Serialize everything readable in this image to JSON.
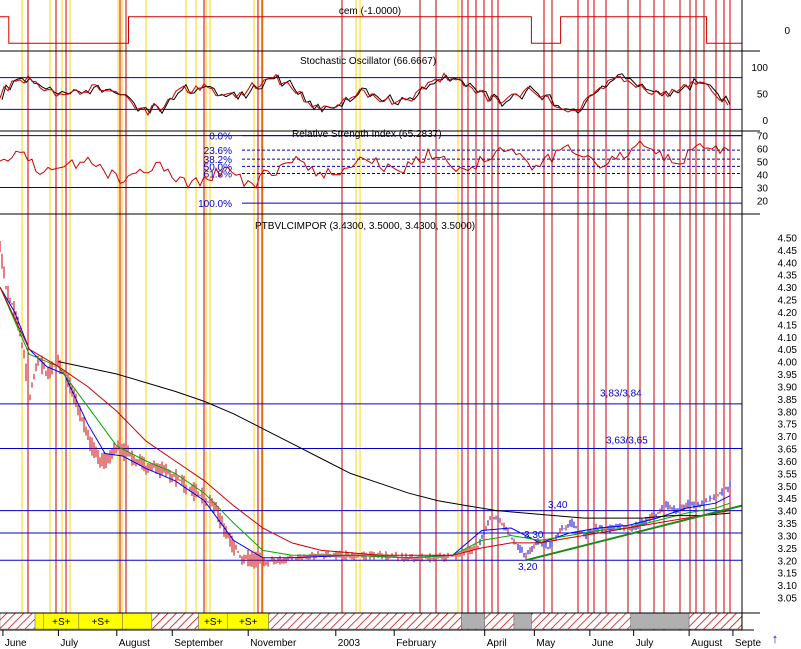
{
  "colors": {
    "background": "#ffffff",
    "frame": "#000000",
    "event_line_yellow": "#ffd700",
    "event_line_red": "#cc0000",
    "price": "#cc0000",
    "price_up": "#0000cc",
    "ma_short": "#0000ff",
    "ma_medium": "#00aa00",
    "ma_long": "#cc0000",
    "ma_200": "#000000",
    "reference_line": "#0000cc",
    "trendline": "#1a8a1a",
    "stripe_hatch": "#cc0000",
    "stripe_yellow": "#ffff00",
    "stripe_gray": "#b0b0b0"
  },
  "chart_data": [
    {
      "type": "line",
      "panel": "cem",
      "title": "cem (-1.0000)",
      "yticks": [
        "0"
      ],
      "ylim": [
        -1.2,
        1.2
      ],
      "series": [
        {
          "x": [
            0,
            0.3,
            0.3,
            4.4,
            4.4,
            18.2,
            18.2,
            19.2,
            19.2,
            24.2,
            24.2,
            25.4
          ],
          "values": [
            1,
            1,
            -1,
            -1,
            1,
            1,
            -1,
            -1,
            1,
            1,
            -1,
            -1
          ]
        }
      ]
    },
    {
      "type": "line",
      "panel": "stochastic",
      "title": "Stochastic Oscillator (66.6667)",
      "yticks": [
        "100",
        "50",
        "0"
      ],
      "ylim": [
        0,
        100
      ],
      "reference_levels": [
        80,
        20
      ]
    },
    {
      "type": "line",
      "panel": "rsi",
      "title": "Relative Strength Index (65.2837)",
      "yticks": [
        "70",
        "60",
        "50",
        "40",
        "30",
        "20"
      ],
      "ylim": [
        15,
        72
      ],
      "fib_labels": [
        "0.0%",
        "23.6%",
        "38.2%",
        "50.0%",
        "61.8%",
        "100.0%"
      ],
      "fib_levels": [
        70,
        58.8,
        51.9,
        46.3,
        40.8,
        18
      ],
      "reference_levels": [
        70,
        30
      ]
    },
    {
      "type": "line",
      "panel": "price",
      "title": "PTBVLCIMPOR (3.4300, 3.5000, 3.4300, 3.5000)",
      "yticks": [
        "4.50",
        "4.45",
        "4.40",
        "4.35",
        "4.30",
        "4.25",
        "4.20",
        "4.15",
        "4.10",
        "4.05",
        "4.00",
        "3.95",
        "3.90",
        "3.85",
        "3.80",
        "3.75",
        "3.70",
        "3.65",
        "3.60",
        "3.55",
        "3.50",
        "3.45",
        "3.40",
        "3.35",
        "3.30",
        "3.25",
        "3.20",
        "3.15",
        "3.10",
        "3.05"
      ],
      "ylim": [
        3.02,
        4.53
      ],
      "x_months": [
        "June",
        "July",
        "August",
        "September",
        "November",
        "2003",
        "February",
        "April",
        "May",
        "June",
        "July",
        "August",
        "Septe"
      ],
      "x_month_pos": [
        0.1,
        2.0,
        4.0,
        5.9,
        8.5,
        11.5,
        13.5,
        16.6,
        18.3,
        20.2,
        21.7,
        23.6,
        25.1
      ],
      "horizontal_levels": [
        3.83,
        3.65,
        3.4,
        3.31,
        3.2
      ],
      "annotations": [
        "3,83/3,84",
        "3,63/3,65",
        "3,40",
        "3,30",
        "3,20"
      ],
      "series": [
        {
          "name": "Close",
          "x": [
            0,
            0.2,
            0.5,
            0.8,
            1.0,
            1.3,
            1.6,
            2.0,
            2.3,
            2.6,
            3.0,
            3.3,
            3.6,
            4.0,
            4.3,
            4.7,
            5.0,
            5.4,
            5.8,
            6.2,
            6.6,
            7.0,
            7.4,
            7.8,
            8.2,
            8.6,
            9.0,
            9.5,
            10.0,
            11.0,
            12.0,
            13.0,
            14.0,
            15.0,
            15.8,
            16.4,
            16.8,
            17.2,
            17.6,
            18.0,
            18.4,
            18.8,
            19.2,
            19.6,
            20.0,
            20.4,
            20.8,
            21.2,
            21.6,
            22.0,
            22.4,
            22.8,
            23.2,
            23.6,
            24.0,
            24.4,
            24.8,
            25.0
          ],
          "values": [
            4.45,
            4.3,
            4.2,
            4.05,
            3.85,
            4.02,
            3.95,
            4.0,
            3.92,
            3.85,
            3.7,
            3.62,
            3.6,
            3.65,
            3.63,
            3.6,
            3.58,
            3.57,
            3.55,
            3.52,
            3.48,
            3.45,
            3.4,
            3.3,
            3.22,
            3.2,
            3.19,
            3.2,
            3.21,
            3.22,
            3.22,
            3.22,
            3.21,
            3.21,
            3.22,
            3.26,
            3.38,
            3.35,
            3.28,
            3.22,
            3.28,
            3.25,
            3.32,
            3.35,
            3.3,
            3.33,
            3.32,
            3.34,
            3.33,
            3.35,
            3.38,
            3.42,
            3.4,
            3.43,
            3.42,
            3.45,
            3.48,
            3.5
          ]
        },
        {
          "name": "MA short",
          "x": [
            0,
            0.5,
            1.0,
            1.6,
            2.2,
            3.0,
            3.6,
            4.2,
            5.0,
            6.0,
            7.0,
            8.0,
            9.0,
            10.0,
            12.0,
            14.0,
            15.5,
            16.5,
            17.5,
            18.5,
            19.5,
            20.5,
            21.5,
            22.5,
            23.5,
            24.5,
            25.0
          ],
          "values": [
            4.3,
            4.2,
            4.05,
            3.98,
            3.95,
            3.75,
            3.63,
            3.62,
            3.57,
            3.52,
            3.44,
            3.28,
            3.21,
            3.21,
            3.22,
            3.21,
            3.22,
            3.32,
            3.33,
            3.27,
            3.31,
            3.33,
            3.34,
            3.37,
            3.41,
            3.43,
            3.46
          ]
        },
        {
          "name": "MA medium",
          "x": [
            0,
            1.0,
            2.0,
            3.0,
            4.0,
            5.0,
            6.0,
            7.0,
            8.0,
            9.0,
            10.0,
            12.0,
            14.0,
            15.5,
            16.5,
            17.5,
            18.5,
            19.5,
            20.5,
            21.5,
            22.5,
            23.5,
            24.5,
            25.0
          ],
          "values": [
            4.3,
            4.03,
            3.98,
            3.82,
            3.66,
            3.6,
            3.55,
            3.47,
            3.35,
            3.24,
            3.22,
            3.22,
            3.21,
            3.22,
            3.28,
            3.3,
            3.28,
            3.3,
            3.32,
            3.33,
            3.36,
            3.39,
            3.41,
            3.43
          ]
        },
        {
          "name": "MA long",
          "x": [
            0,
            1.0,
            2.0,
            3.0,
            4.0,
            5.0,
            6.0,
            7.0,
            8.0,
            9.0,
            10.0,
            11.0,
            12.0,
            13.0,
            14.0,
            15.5,
            16.5,
            17.5,
            18.5,
            19.5,
            20.5,
            21.5,
            22.5,
            23.5,
            24.5,
            25.0
          ],
          "values": [
            4.3,
            4.05,
            3.98,
            3.9,
            3.8,
            3.68,
            3.6,
            3.52,
            3.42,
            3.33,
            3.27,
            3.24,
            3.23,
            3.22,
            3.22,
            3.22,
            3.25,
            3.27,
            3.27,
            3.29,
            3.31,
            3.33,
            3.35,
            3.37,
            3.39,
            3.4
          ]
        },
        {
          "name": "MA 200",
          "x": [
            2.0,
            4.0,
            6.0,
            7.0,
            8.0,
            9.0,
            10.0,
            11.0,
            12.0,
            13.0,
            14.0,
            15.0,
            16.0,
            17.0,
            18.0,
            19.0,
            20.0,
            21.0,
            22.0,
            23.0,
            24.0,
            25.0
          ],
          "values": [
            4.0,
            3.95,
            3.88,
            3.84,
            3.79,
            3.73,
            3.67,
            3.61,
            3.55,
            3.51,
            3.47,
            3.44,
            3.42,
            3.4,
            3.39,
            3.38,
            3.37,
            3.37,
            3.37,
            3.38,
            3.38,
            3.39
          ]
        }
      ],
      "trendline": {
        "x": [
          18.0,
          25.4
        ],
        "values": [
          3.2,
          3.42
        ]
      }
    }
  ],
  "stripe": {
    "segments": [
      {
        "from": 0.0,
        "to": 1.2,
        "kind": "hatch"
      },
      {
        "from": 1.2,
        "to": 1.5,
        "kind": "yellow"
      },
      {
        "from": 1.5,
        "to": 2.7,
        "kind": "yellow",
        "label": "+S+"
      },
      {
        "from": 2.7,
        "to": 4.2,
        "kind": "yellow",
        "label": "+S+"
      },
      {
        "from": 4.2,
        "to": 5.2,
        "kind": "yellow"
      },
      {
        "from": 5.2,
        "to": 6.8,
        "kind": "hatch"
      },
      {
        "from": 6.8,
        "to": 7.8,
        "kind": "yellow",
        "label": "+S+"
      },
      {
        "from": 7.8,
        "to": 9.2,
        "kind": "yellow",
        "label": "+S+"
      },
      {
        "from": 9.2,
        "to": 15.8,
        "kind": "hatch"
      },
      {
        "from": 15.8,
        "to": 16.6,
        "kind": "gray"
      },
      {
        "from": 16.6,
        "to": 17.6,
        "kind": "hatch"
      },
      {
        "from": 17.6,
        "to": 18.2,
        "kind": "gray"
      },
      {
        "from": 18.2,
        "to": 21.6,
        "kind": "hatch"
      },
      {
        "from": 21.6,
        "to": 23.6,
        "kind": "gray"
      },
      {
        "from": 23.6,
        "to": 25.4,
        "kind": "hatch"
      }
    ]
  },
  "scroll_arrow": "↑"
}
